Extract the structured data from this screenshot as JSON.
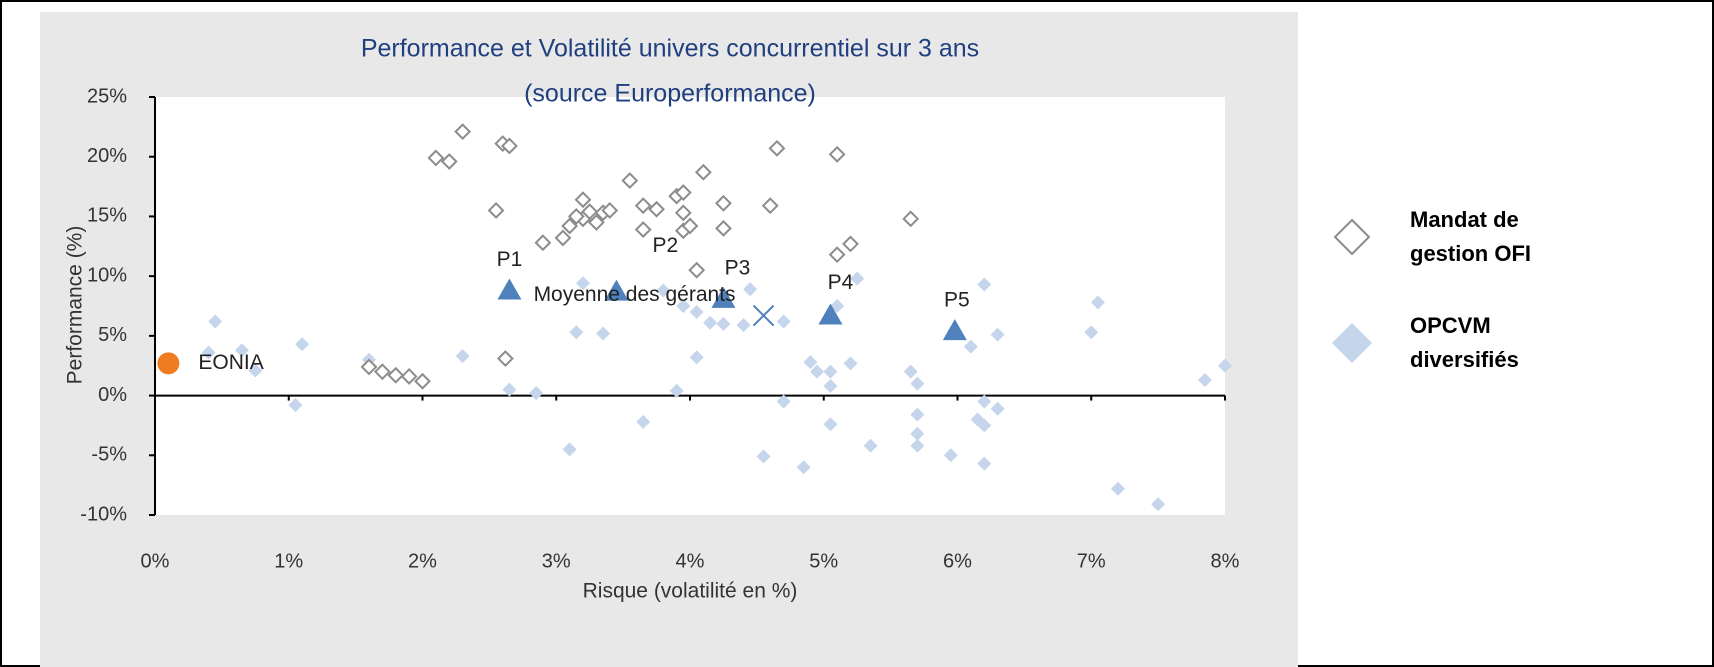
{
  "chart_data": {
    "type": "scatter",
    "title": "Performance et Volatilité univers concurrentiel sur 3 ans",
    "subtitle": "(source Europerformance)",
    "xlabel": "Risque (volatilité en %)",
    "ylabel": "Performance (%)",
    "xlim": [
      0,
      8
    ],
    "ylim": [
      -10,
      25
    ],
    "xticks": [
      {
        "value": 0,
        "label": "0%"
      },
      {
        "value": 1,
        "label": "1%"
      },
      {
        "value": 2,
        "label": "2%"
      },
      {
        "value": 3,
        "label": "3%"
      },
      {
        "value": 4,
        "label": "4%"
      },
      {
        "value": 5,
        "label": "5%"
      },
      {
        "value": 6,
        "label": "6%"
      },
      {
        "value": 7,
        "label": "7%"
      },
      {
        "value": 8,
        "label": "8%"
      }
    ],
    "yticks": [
      {
        "value": -10,
        "label": "-10%"
      },
      {
        "value": -5,
        "label": "-5%"
      },
      {
        "value": 0,
        "label": "0%"
      },
      {
        "value": 5,
        "label": "5%"
      },
      {
        "value": 10,
        "label": "10%"
      },
      {
        "value": 15,
        "label": "15%"
      },
      {
        "value": 20,
        "label": "20%"
      },
      {
        "value": 25,
        "label": "25%"
      }
    ],
    "legend": "right",
    "series": [
      {
        "name": "Mandat de gestion OFI",
        "color": "#8c8c8c",
        "marker": "hollow-diamond",
        "x": [
          2.3,
          2.1,
          2.2,
          2.6,
          2.65,
          2.55,
          3.2,
          3.55,
          4.1,
          4.65,
          5.1,
          3.65,
          3.75,
          3.2,
          3.25,
          3.15,
          3.1,
          3.05,
          3.3,
          3.35,
          3.4,
          2.9,
          3.65,
          3.9,
          3.95,
          3.95,
          3.95,
          4.0,
          4.25,
          4.25,
          4.05,
          4.6,
          5.65,
          5.2,
          5.1,
          2.62,
          1.6,
          1.7,
          1.8,
          1.9,
          2.0
        ],
        "values": [
          22.1,
          19.9,
          19.6,
          21.1,
          20.9,
          15.5,
          16.4,
          18.0,
          18.7,
          20.7,
          20.2,
          15.9,
          15.6,
          14.8,
          15.4,
          15.0,
          14.2,
          13.2,
          14.5,
          15.3,
          15.5,
          12.8,
          13.9,
          16.7,
          17.0,
          15.3,
          13.8,
          14.2,
          16.1,
          14.0,
          10.5,
          15.9,
          14.8,
          12.7,
          11.8,
          3.1,
          2.4,
          2.0,
          1.7,
          1.6,
          1.2
        ]
      },
      {
        "name": "OPCVM diversifiés",
        "color": "#c5d5ec",
        "marker": "diamond",
        "x": [
          0.45,
          0.4,
          0.65,
          0.75,
          1.1,
          1.05,
          1.6,
          2.3,
          2.65,
          2.85,
          3.15,
          3.2,
          3.35,
          3.1,
          3.65,
          3.8,
          3.9,
          3.95,
          4.05,
          4.05,
          4.15,
          4.25,
          4.4,
          4.45,
          4.7,
          4.7,
          4.55,
          4.9,
          4.95,
          4.85,
          5.05,
          5.05,
          5.1,
          5.05,
          5.2,
          5.25,
          5.35,
          5.65,
          5.7,
          5.7,
          5.7,
          5.7,
          5.95,
          6.1,
          6.2,
          6.3,
          6.2,
          6.3,
          6.15,
          6.2,
          6.2,
          7.0,
          7.05,
          7.2,
          7.5,
          7.85,
          8.0
        ],
        "values": [
          6.2,
          3.6,
          3.8,
          2.1,
          4.3,
          -0.8,
          3.0,
          3.3,
          0.5,
          0.2,
          5.3,
          9.4,
          5.2,
          -4.5,
          -2.2,
          8.8,
          0.4,
          7.5,
          7.0,
          3.2,
          6.1,
          6.0,
          5.9,
          8.9,
          6.2,
          -0.5,
          -5.1,
          2.8,
          2.0,
          -6.0,
          2.0,
          0.8,
          7.5,
          -2.4,
          2.7,
          9.8,
          -4.2,
          2.0,
          1.0,
          -1.6,
          -3.2,
          -4.2,
          -5.0,
          4.1,
          9.3,
          5.1,
          -0.5,
          -1.1,
          -2.0,
          -2.5,
          -5.7,
          5.3,
          7.8,
          -7.8,
          -9.1,
          1.3,
          2.5
        ]
      }
    ],
    "points": [
      {
        "label": "P1",
        "x": 2.65,
        "y": 8.8,
        "color": "#4f81bd",
        "marker": "triangle"
      },
      {
        "label": "P2",
        "x": 3.45,
        "y": 8.7,
        "color": "#4f81bd",
        "marker": "triangle"
      },
      {
        "label": "P3",
        "x": 4.25,
        "y": 8.1,
        "color": "#4f81bd",
        "marker": "triangle"
      },
      {
        "label": "P4",
        "x": 5.05,
        "y": 6.7,
        "color": "#4f81bd",
        "marker": "triangle"
      },
      {
        "label": "P5",
        "x": 5.98,
        "y": 5.4,
        "color": "#4f81bd",
        "marker": "triangle"
      },
      {
        "label": "Moyenne des gérants",
        "x": 4.55,
        "y": 6.7,
        "color": "#4f81bd",
        "marker": "x"
      },
      {
        "label": "EONIA",
        "x": 0.1,
        "y": 2.7,
        "color": "#f07c22",
        "marker": "circle"
      }
    ]
  }
}
